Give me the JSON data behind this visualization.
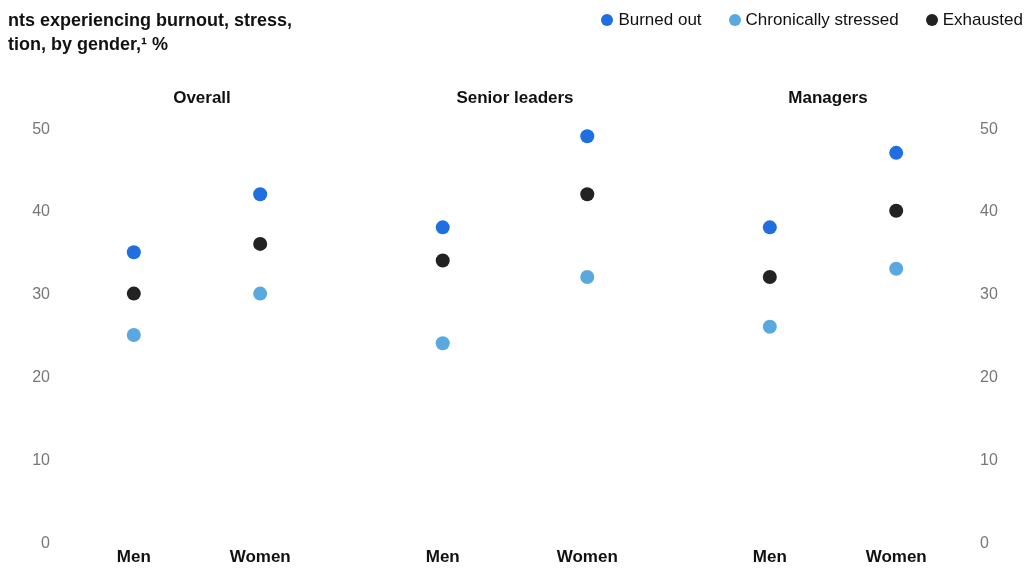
{
  "chart_data": [
    {
      "type": "scatter",
      "title": "nts experiencing burnout, stress,\ntion, by gender,¹ %",
      "subtitle": "Overall",
      "categories": [
        "Men",
        "Women"
      ],
      "ylim": [
        0,
        50
      ],
      "yticks": [
        0,
        10,
        20,
        30,
        40,
        50
      ],
      "legend": "top right",
      "marker": "circle",
      "series": [
        {
          "name": "Burned out",
          "color": "#1f6fe0",
          "values": [
            35,
            42
          ]
        },
        {
          "name": "Chronically stressed",
          "color": "#5aa8e0",
          "values": [
            25,
            30
          ]
        },
        {
          "name": "Exhausted",
          "color": "#222222",
          "values": [
            30,
            36
          ]
        }
      ]
    },
    {
      "type": "scatter",
      "subtitle": "Senior leaders",
      "categories": [
        "Men",
        "Women"
      ],
      "ylim": [
        0,
        50
      ],
      "yticks": [
        0,
        10,
        20,
        30,
        40,
        50
      ],
      "tick_labels": "x",
      "marker": "circle",
      "series": [
        {
          "color": "#1f6fe0",
          "values": [
            38,
            49
          ]
        },
        {
          "color": "#5aa8e0",
          "values": [
            24,
            32
          ]
        },
        {
          "color": "#222222",
          "values": [
            34,
            42
          ]
        }
      ]
    },
    {
      "type": "scatter",
      "subtitle": "Managers",
      "categories": [
        "Men",
        "Women"
      ],
      "ylim": [
        0,
        50
      ],
      "yticks": [
        0,
        10,
        20,
        30,
        40,
        50
      ],
      "marker": "circle",
      "series": [
        {
          "color": "#1f6fe0",
          "values": [
            38,
            47
          ]
        },
        {
          "color": "#5aa8e0",
          "values": [
            26,
            33
          ]
        },
        {
          "color": "#222222",
          "values": [
            32,
            40
          ]
        }
      ]
    }
  ]
}
